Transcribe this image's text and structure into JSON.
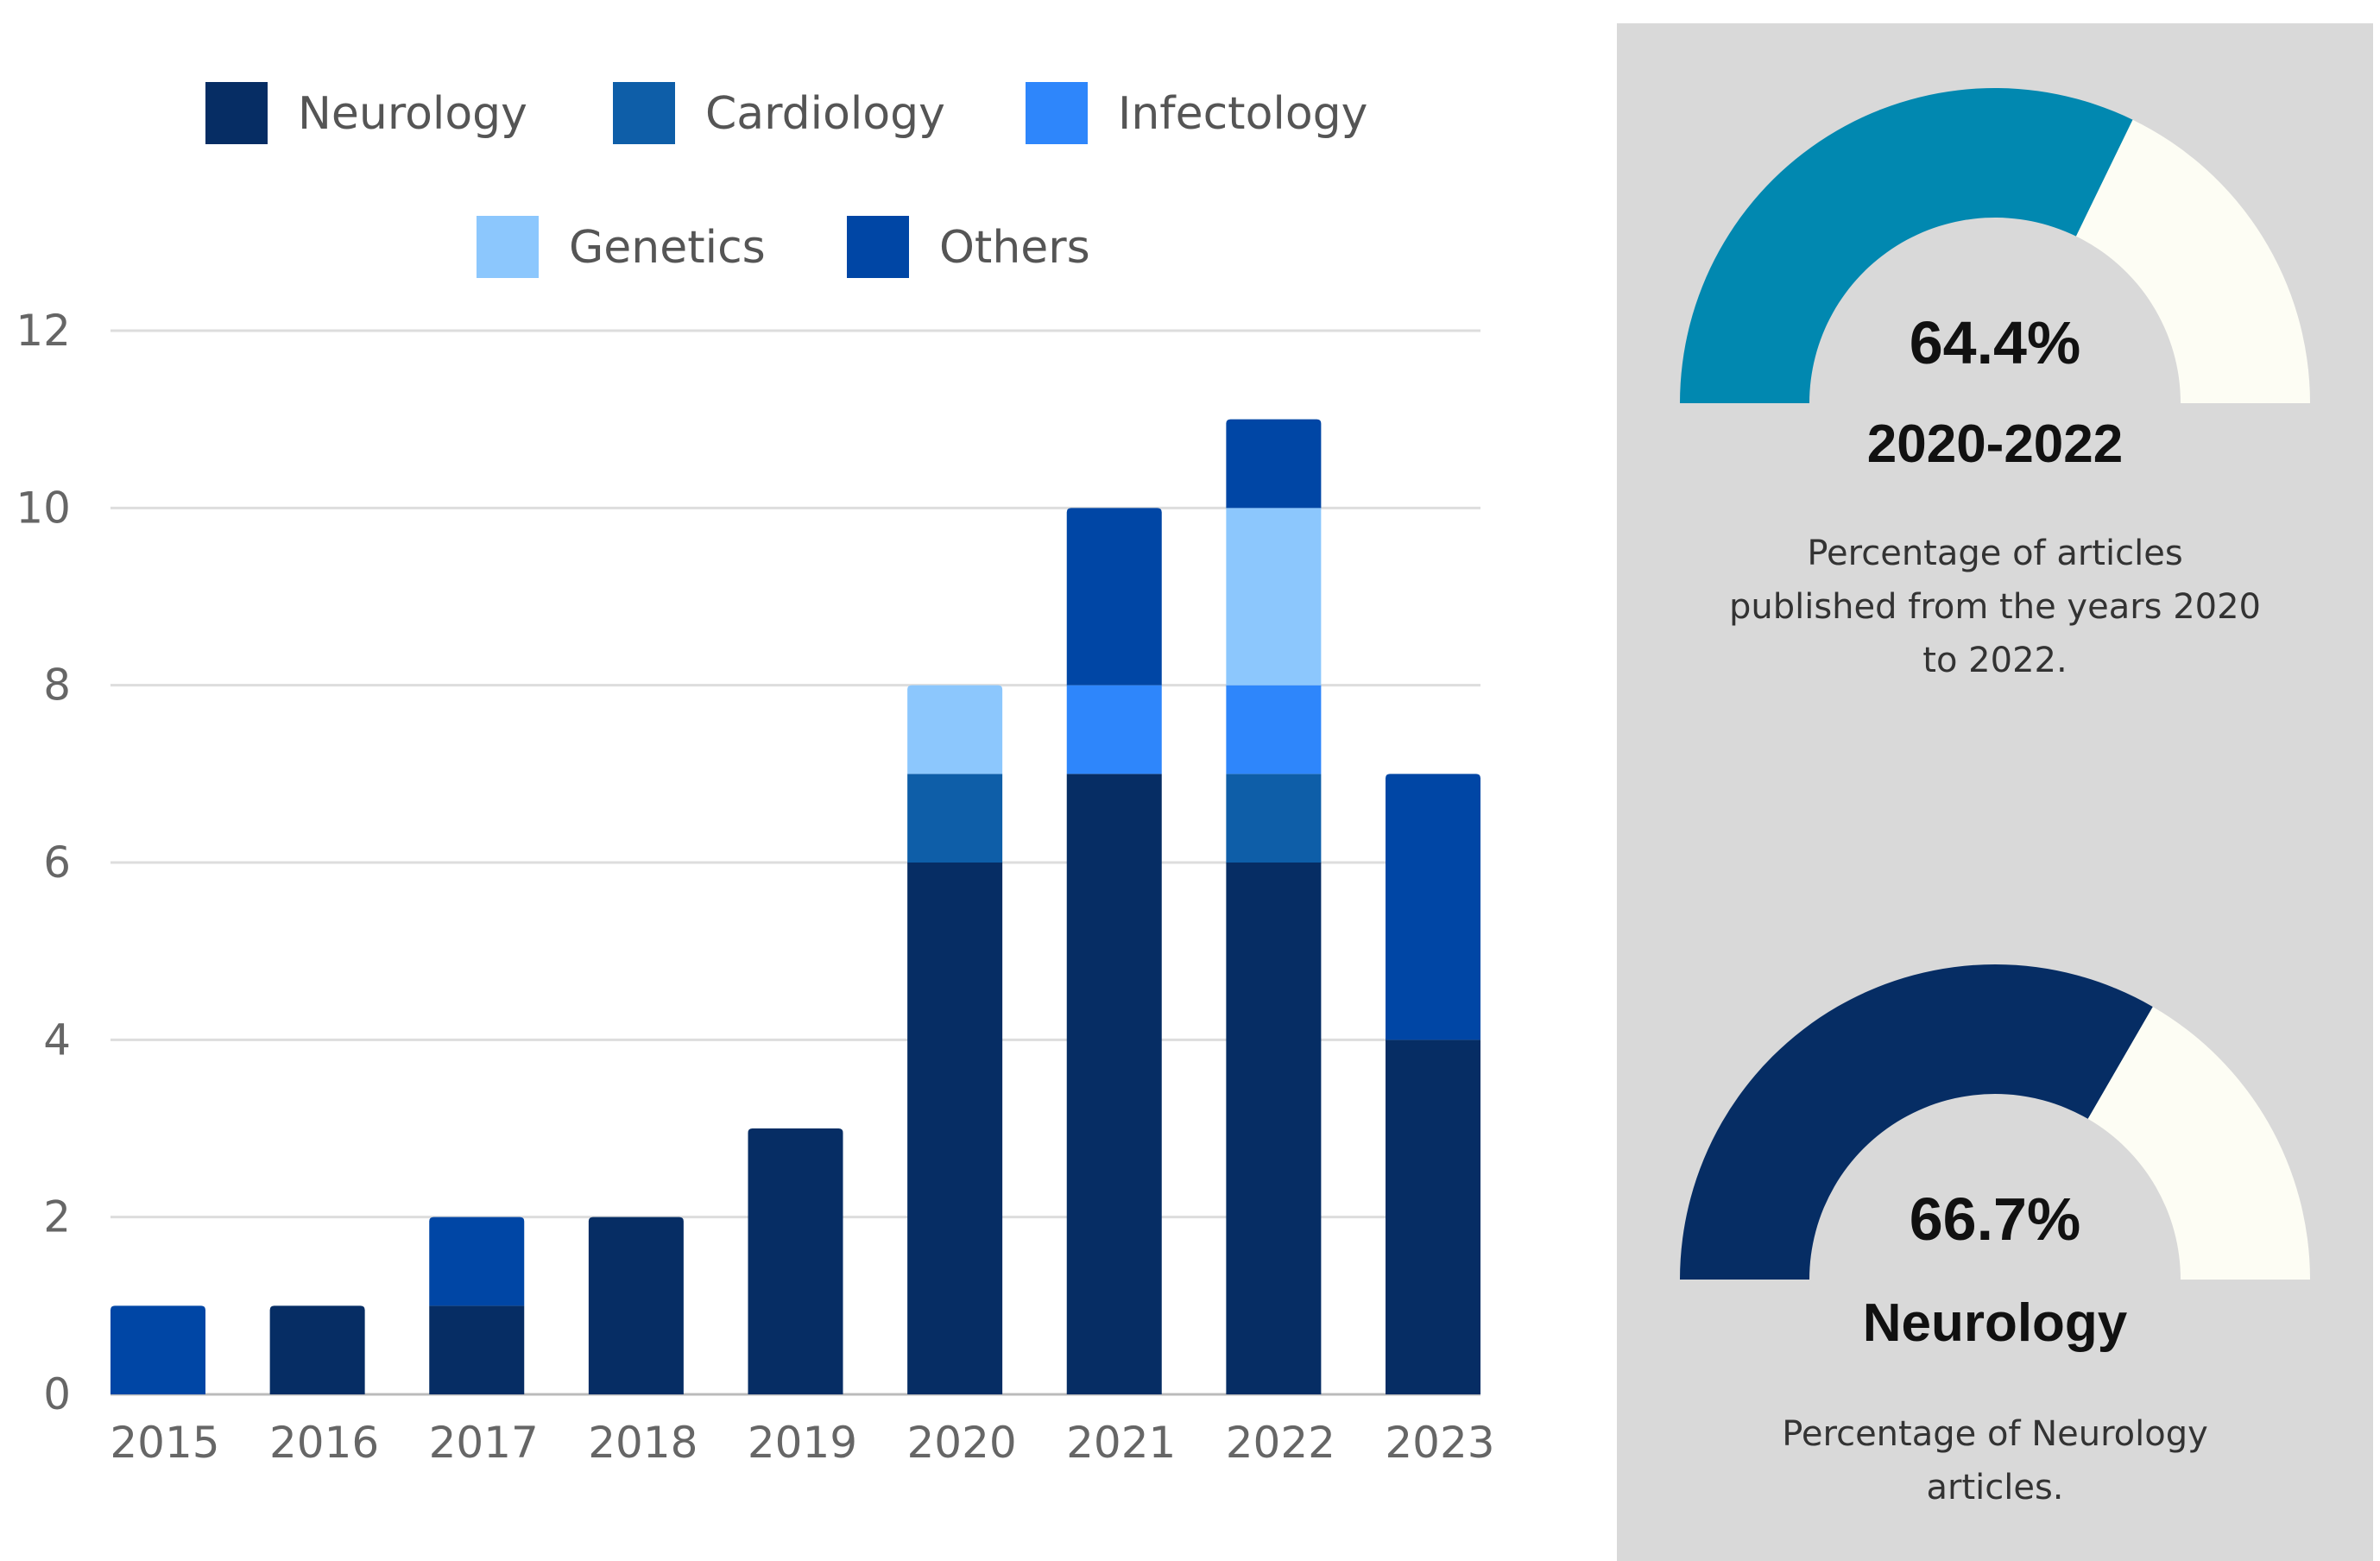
{
  "chart_data": {
    "type": "bar",
    "stacked": true,
    "categories": [
      "2015",
      "2016",
      "2017",
      "2018",
      "2019",
      "2020",
      "2021",
      "2022",
      "2023"
    ],
    "series": [
      {
        "name": "Neurology",
        "color": "#062d64",
        "values": [
          0,
          1,
          1,
          2,
          3,
          6,
          7,
          6,
          4
        ]
      },
      {
        "name": "Cardiology",
        "color": "#0e5ea8",
        "values": [
          0,
          0,
          0,
          0,
          0,
          1,
          0,
          1,
          0
        ]
      },
      {
        "name": "Infectology",
        "color": "#2e86fb",
        "values": [
          0,
          0,
          0,
          0,
          0,
          0,
          1,
          1,
          0
        ]
      },
      {
        "name": "Genetics",
        "color": "#8cc7fd",
        "values": [
          0,
          0,
          0,
          0,
          0,
          1,
          0,
          2,
          0
        ]
      },
      {
        "name": "Others",
        "color": "#0046a5",
        "values": [
          1,
          0,
          1,
          0,
          0,
          0,
          2,
          1,
          3
        ]
      }
    ],
    "ylim": [
      0,
      12
    ],
    "yticks": [
      0,
      2,
      4,
      6,
      8,
      10,
      12
    ],
    "grid": true,
    "legend_position": "top",
    "title": "",
    "xlabel": "",
    "ylabel": ""
  },
  "gauges": [
    {
      "percent_value": 64.4,
      "percent_label": "64.4%",
      "title": "2020-2022",
      "description": "Percentage of articles published from the years 2020 to 2022.",
      "fill_color": "#0188b0",
      "rest_color": "#fdfdf4"
    },
    {
      "percent_value": 66.7,
      "percent_label": "66.7%",
      "title": "Neurology",
      "description": "Percentage of Neurology articles.",
      "fill_color": "#062d64",
      "rest_color": "#fdfdf4"
    }
  ]
}
